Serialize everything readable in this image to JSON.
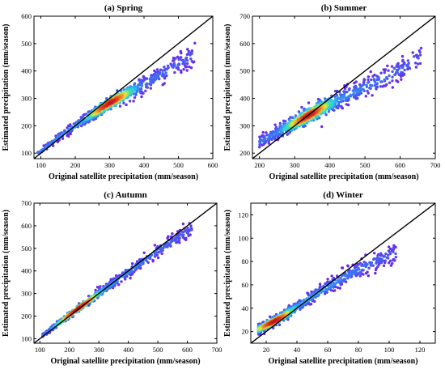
{
  "chart_data": [
    {
      "type": "scatter",
      "title": "(a) Spring",
      "xlabel": "Original satellite precipitation (mm/season)",
      "ylabel": "Estimated precipitation (mm/season)",
      "xlim": [
        80,
        600
      ],
      "ylim": [
        80,
        600
      ],
      "xticks": [
        100,
        200,
        300,
        400,
        500,
        600
      ],
      "yticks": [
        100,
        200,
        300,
        400,
        500,
        600
      ],
      "reference_line": "1:1",
      "density_colored": true,
      "trend": {
        "x": [
          90,
          150,
          200,
          250,
          300,
          350,
          400,
          450,
          500
        ],
        "y": [
          98,
          158,
          200,
          242,
          283,
          318,
          352,
          388,
          425
        ]
      },
      "scatter_band": {
        "x_range": [
          90,
          550
        ],
        "halfwidth": [
          8,
          35
        ]
      },
      "density_peak": [
        300,
        285
      ]
    },
    {
      "type": "scatter",
      "title": "(b) Summer",
      "xlabel": "Original satellite precipitation (mm/season)",
      "ylabel": "Estimated precipitation (mm/season)",
      "xlim": [
        180,
        700
      ],
      "ylim": [
        180,
        700
      ],
      "xticks": [
        200,
        300,
        400,
        500,
        600,
        700
      ],
      "yticks": [
        200,
        300,
        400,
        500,
        600,
        700
      ],
      "reference_line": "1:1",
      "density_colored": true,
      "trend": {
        "x": [
          200,
          250,
          300,
          350,
          400,
          450,
          500,
          550,
          600,
          650
        ],
        "y": [
          240,
          275,
          310,
          345,
          380,
          410,
          440,
          470,
          505,
          545
        ]
      },
      "scatter_band": {
        "x_range": [
          200,
          660
        ],
        "halfwidth": [
          20,
          40
        ]
      },
      "density_peak": [
        340,
        340
      ]
    },
    {
      "type": "scatter",
      "title": "(c) Autumn",
      "xlabel": "Original satellite precipitation (mm/season)",
      "ylabel": "Estimated precipitation (mm/season)",
      "xlim": [
        80,
        700
      ],
      "ylim": [
        80,
        700
      ],
      "xticks": [
        100,
        200,
        300,
        400,
        500,
        600,
        700
      ],
      "yticks": [
        100,
        200,
        300,
        400,
        500,
        600,
        700
      ],
      "reference_line": "1:1",
      "density_colored": true,
      "trend": {
        "x": [
          110,
          200,
          300,
          400,
          500,
          600
        ],
        "y": [
          115,
          205,
          300,
          395,
          490,
          575
        ]
      },
      "scatter_band": {
        "x_range": [
          110,
          620
        ],
        "halfwidth": [
          8,
          30
        ]
      },
      "density_peak": [
        230,
        235
      ]
    },
    {
      "type": "scatter",
      "title": "(d) Winter",
      "xlabel": "Original satellite precipitation (mm/season)",
      "ylabel": "Estimated precipitation (mm/season)",
      "xlim": [
        10,
        130
      ],
      "ylim": [
        10,
        130
      ],
      "xticks": [
        20,
        40,
        60,
        80,
        100,
        120
      ],
      "yticks": [
        20,
        40,
        60,
        80,
        100,
        120
      ],
      "reference_line": "1:1",
      "density_colored": true,
      "trend": {
        "x": [
          15,
          30,
          50,
          70,
          90,
          100
        ],
        "y": [
          22,
          32,
          50,
          66,
          80,
          85
        ]
      },
      "scatter_band": {
        "x_range": [
          15,
          105
        ],
        "halfwidth": [
          3,
          8
        ]
      },
      "density_peak": [
        25,
        28
      ]
    }
  ]
}
